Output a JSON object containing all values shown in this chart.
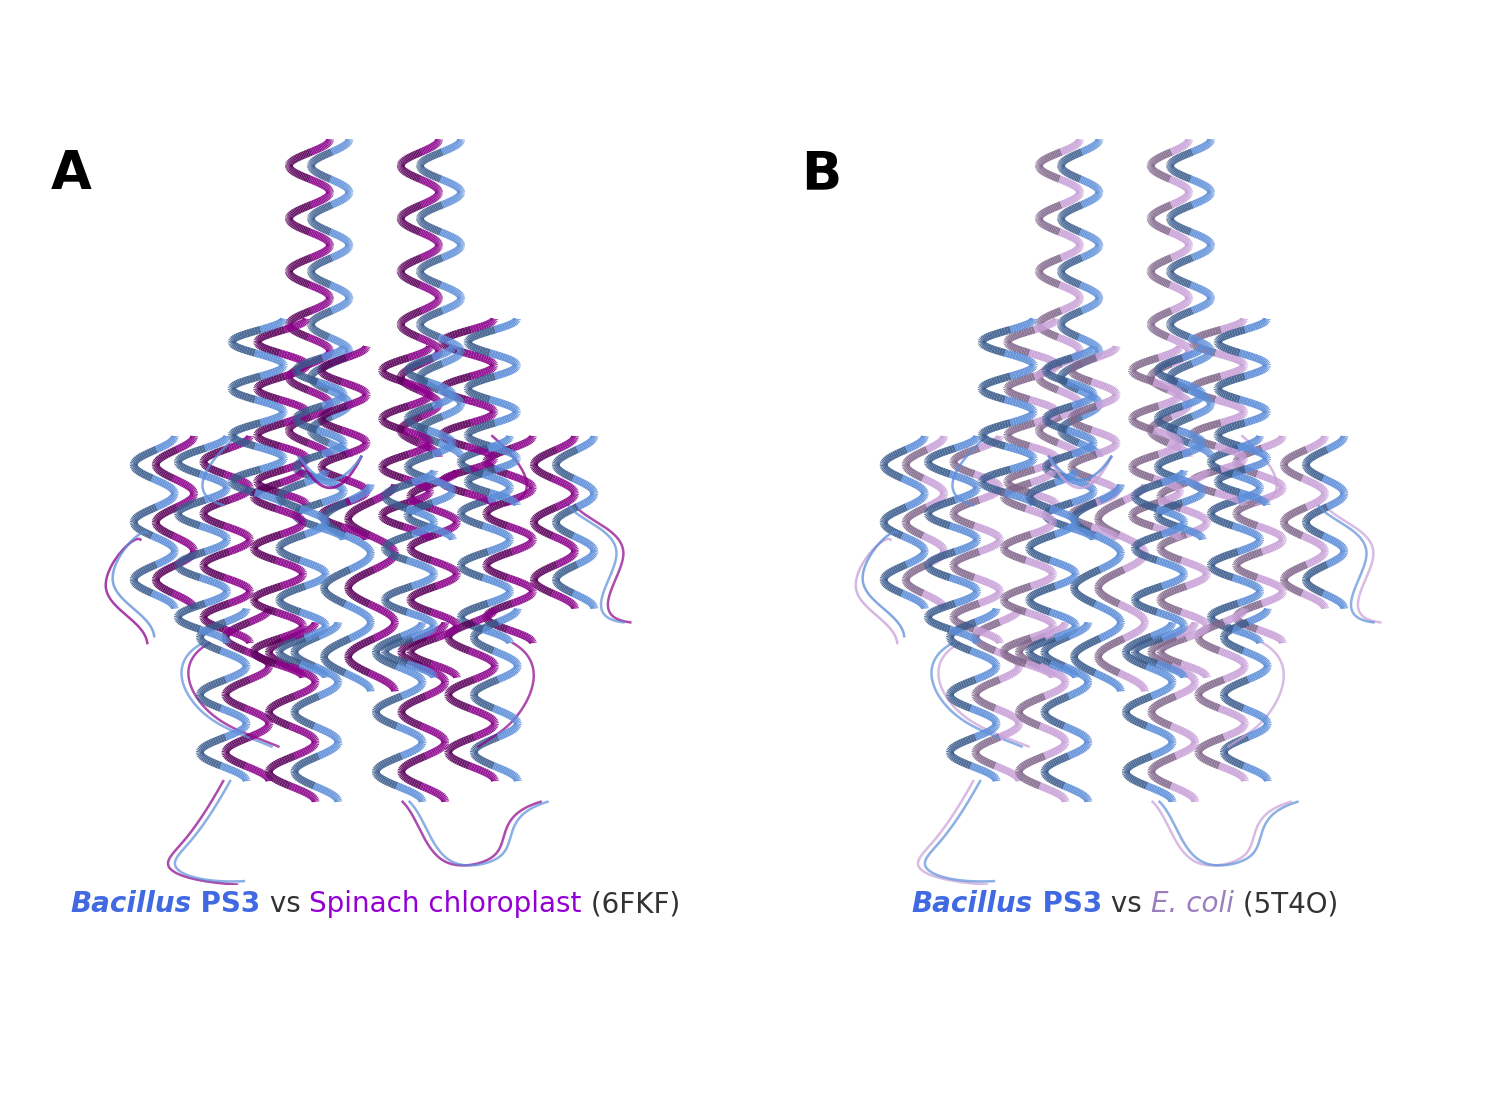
{
  "panel_A_label": "A",
  "panel_B_label": "B",
  "label_fontsize": 38,
  "label_fontweight": "bold",
  "caption_A_parts": [
    {
      "text": "Bacillus",
      "style": "italic",
      "color": "#4169E1",
      "bold": true
    },
    {
      "text": " PS3",
      "style": "normal",
      "color": "#4169E1",
      "bold": true
    },
    {
      "text": " vs ",
      "style": "normal",
      "color": "#333333",
      "bold": false
    },
    {
      "text": "Spinach chloroplast",
      "style": "normal",
      "color": "#9400D3",
      "bold": false
    },
    {
      "text": " (6FKF)",
      "style": "normal",
      "color": "#333333",
      "bold": false
    }
  ],
  "caption_B_parts": [
    {
      "text": "Bacillus",
      "style": "italic",
      "color": "#4169E1",
      "bold": true
    },
    {
      "text": " PS3",
      "style": "normal",
      "color": "#4169E1",
      "bold": true
    },
    {
      "text": " vs ",
      "style": "normal",
      "color": "#333333",
      "bold": false
    },
    {
      "text": "E. coli",
      "style": "italic",
      "color": "#9B7EBD",
      "bold": false
    },
    {
      "text": " (5T4O)",
      "style": "normal",
      "color": "#333333",
      "bold": false
    }
  ],
  "caption_fontsize": 20,
  "background_color": "#ffffff",
  "blue_color": "#5B8DD9",
  "purple_color": "#8B008B",
  "pink_color": "#C8A0D8",
  "fig_width": 15.0,
  "fig_height": 10.98,
  "dpi": 100
}
